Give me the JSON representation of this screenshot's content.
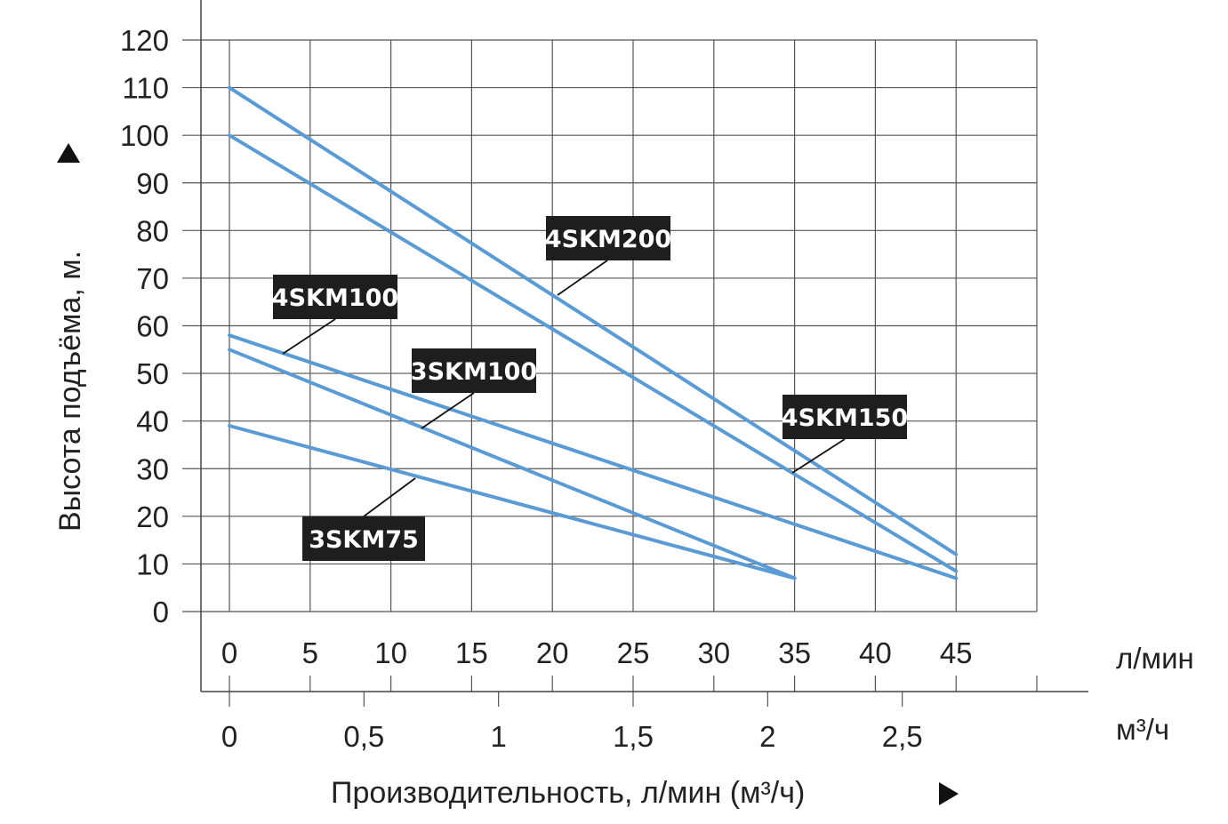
{
  "chart_data": {
    "type": "line",
    "xlabel": "Производительность, л/мин (м³/ч)",
    "ylabel": "Высота подъёма, м.",
    "x_unit": "л/мин",
    "x2_unit": "м³/ч",
    "xlim": [
      0,
      50
    ],
    "ylim": [
      0,
      120
    ],
    "x_ticks": [
      "0",
      "5",
      "10",
      "15",
      "20",
      "25",
      "30",
      "35",
      "40",
      "45"
    ],
    "x2_ticks": [
      "0",
      "0,5",
      "1",
      "1,5",
      "2",
      "2,5"
    ],
    "y_ticks": [
      "0",
      "10",
      "20",
      "30",
      "40",
      "50",
      "60",
      "70",
      "80",
      "90",
      "100",
      "110",
      "120"
    ],
    "grid": true,
    "line_color": "#5b9bd5",
    "series": [
      {
        "name": "4SKM200",
        "x": [
          0,
          45
        ],
        "y": [
          110,
          12
        ]
      },
      {
        "name": "4SKM150",
        "x": [
          0,
          45
        ],
        "y": [
          100,
          8.5
        ]
      },
      {
        "name": "4SKM100",
        "x": [
          0,
          45
        ],
        "y": [
          58,
          7
        ]
      },
      {
        "name": "3SKM100",
        "x": [
          0,
          35
        ],
        "y": [
          55,
          7
        ]
      },
      {
        "name": "3SKM75",
        "x": [
          0,
          35
        ],
        "y": [
          39,
          7
        ]
      }
    ]
  }
}
